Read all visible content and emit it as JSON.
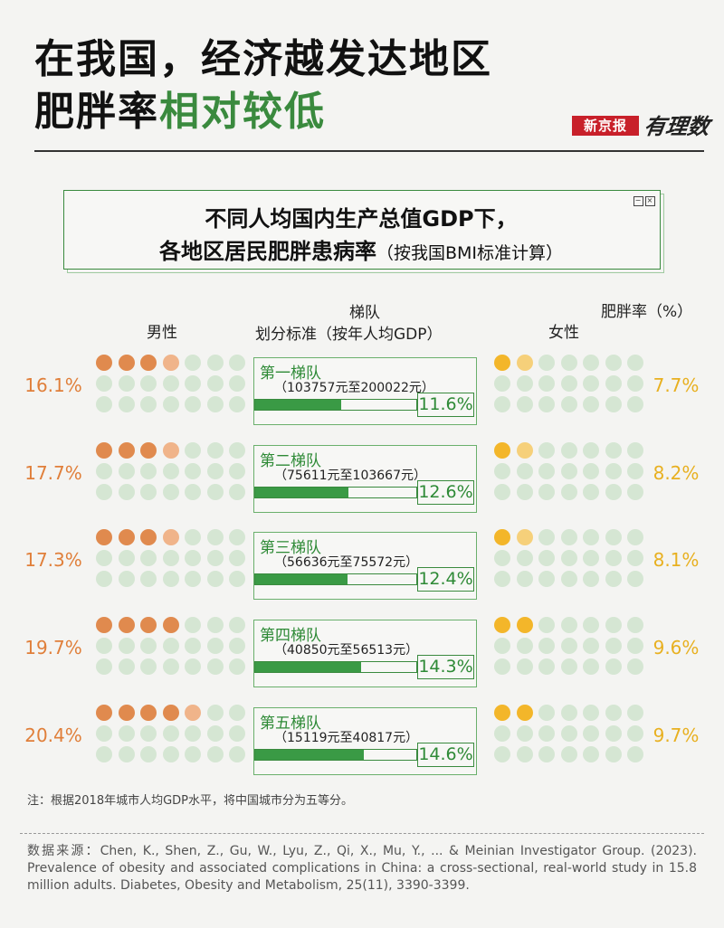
{
  "title": {
    "line1": "在我国，经济越发达地区",
    "line2_plain": "肥胖率",
    "line2_highlight": "相对较低"
  },
  "brand": {
    "name": "新京报",
    "column": "有理数"
  },
  "subtitle": {
    "line1": "不同人均国内生产总值GDP下，",
    "line2": "各地区居民肥胖患病率",
    "line2_note": "（按我国BMI标准计算）"
  },
  "headers": {
    "male": "男性",
    "female": "女性",
    "tier": "梯队",
    "tier_sub": "划分标准（按年人均GDP）",
    "rate": "肥胖率（%）"
  },
  "colors": {
    "male": "#e08a4e",
    "female": "#f3b62a",
    "empty": "#d5e6d3",
    "male_partial": "#f0b48a",
    "female_partial": "#f6d07a",
    "accent": "#3a8a3e"
  },
  "chart_data": {
    "type": "table",
    "dots_per_group": 21,
    "tiers": [
      {
        "name": "第一梯队",
        "range": "（103757元至200022元）",
        "overall": "11.6%",
        "overall_value": 11.6,
        "male": "16.1%",
        "male_value": 16.1,
        "female": "7.7%",
        "female_value": 7.7
      },
      {
        "name": "第二梯队",
        "range": "（75611元至103667元）",
        "overall": "12.6%",
        "overall_value": 12.6,
        "male": "17.7%",
        "male_value": 17.7,
        "female": "8.2%",
        "female_value": 8.2
      },
      {
        "name": "第三梯队",
        "range": "（56636元至75572元）",
        "overall": "12.4%",
        "overall_value": 12.4,
        "male": "17.3%",
        "male_value": 17.3,
        "female": "8.1%",
        "female_value": 8.1
      },
      {
        "name": "第四梯队",
        "range": "（40850元至56513元）",
        "overall": "14.3%",
        "overall_value": 14.3,
        "male": "19.7%",
        "male_value": 19.7,
        "female": "9.6%",
        "female_value": 9.6
      },
      {
        "name": "第五梯队",
        "range": "（15119元至40817元）",
        "overall": "14.6%",
        "overall_value": 14.6,
        "male": "20.4%",
        "male_value": 20.4,
        "female": "9.7%",
        "female_value": 9.7
      }
    ]
  },
  "note": "注：根据2018年城市人均GDP水平，将中国城市分为五等分。",
  "source": "数据来源：Chen, K., Shen, Z., Gu, W., Lyu, Z., Qi, X., Mu, Y., ... & Meinian Investigator Group. (2023). Prevalence of obesity and associated complications in China: a cross-sectional, real-world study in 15.8 million adults.   Diabetes, Obesity and Metabolism, 25(11), 3390-3399."
}
